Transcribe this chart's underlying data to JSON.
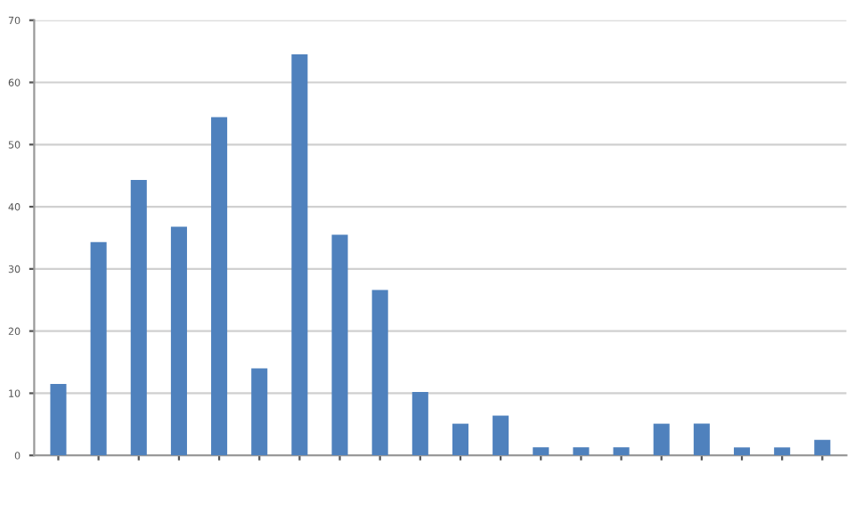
{
  "chart_data": {
    "type": "bar",
    "categories": [
      null,
      null,
      null,
      null,
      null,
      null,
      null,
      null,
      null,
      null,
      null,
      null,
      null,
      null,
      null,
      null,
      null,
      null,
      null,
      null
    ],
    "values": [
      11.5,
      34.3,
      44.3,
      36.8,
      54.4,
      14.0,
      64.5,
      35.5,
      26.6,
      10.2,
      5.1,
      6.4,
      1.3,
      1.3,
      1.3,
      5.1,
      5.1,
      1.3,
      1.3,
      2.5
    ],
    "color": "#4f81bd",
    "ylim": [
      0,
      70
    ],
    "yticks": [
      0,
      10,
      20,
      30,
      40,
      50,
      60,
      70
    ],
    "grid": "y"
  }
}
